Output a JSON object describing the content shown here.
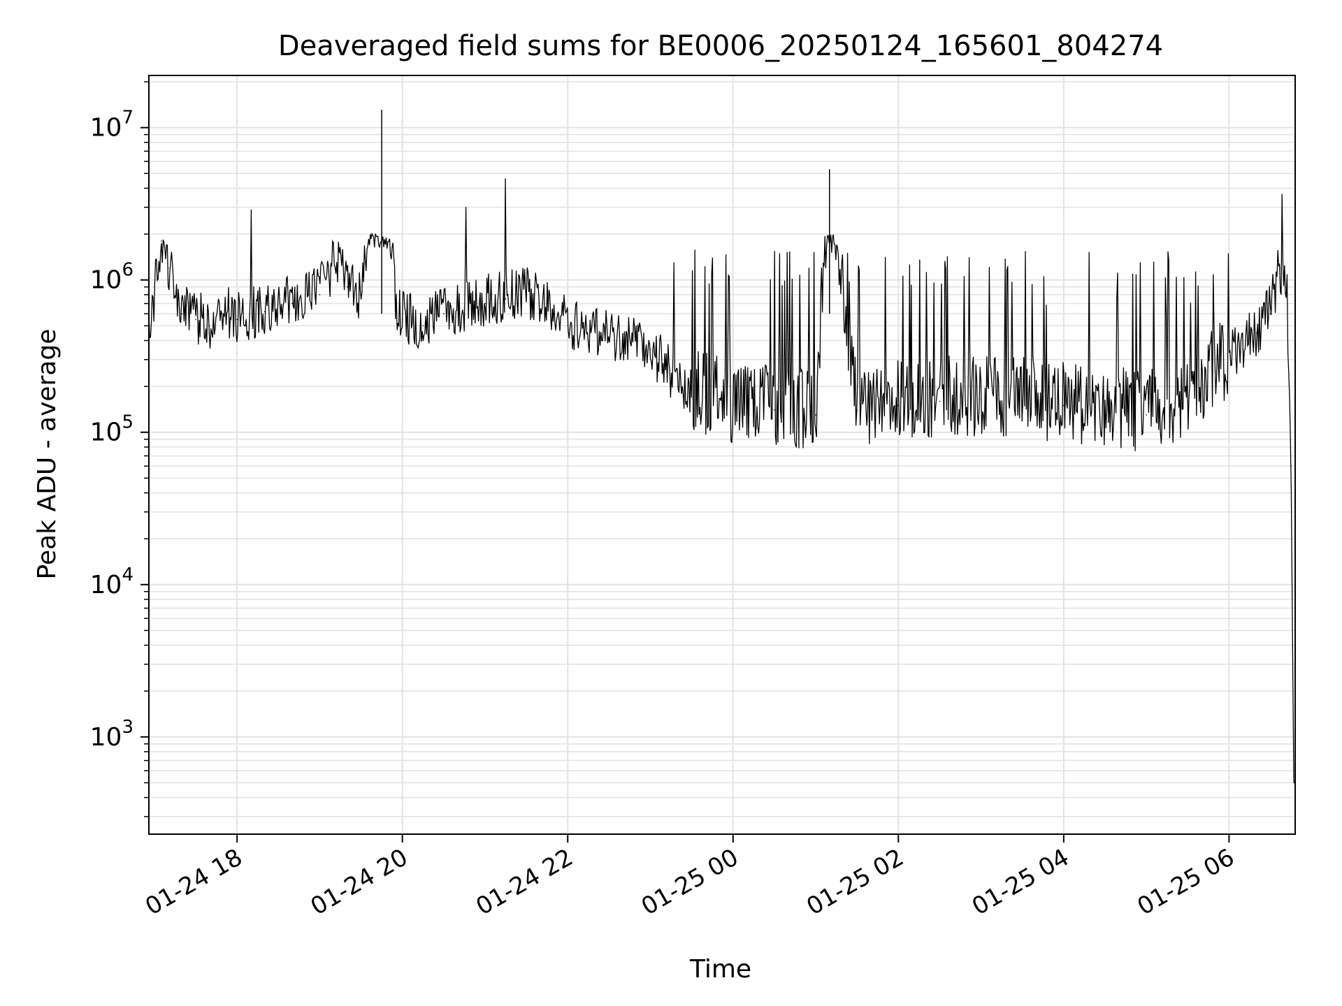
{
  "chart_data": {
    "type": "line",
    "title": "Deaveraged field sums for BE0006_20250124_165601_804274",
    "xlabel": "Time",
    "ylabel": "Peak ADU - average",
    "yscale": "log",
    "grid": true,
    "line_color": "#000000",
    "x_range": [
      "2025-01-24 16:56",
      "2025-01-25 06:48"
    ],
    "ylim": [
      230,
      22000000
    ],
    "x_ticks": [
      {
        "label": "01-24 18",
        "time": "2025-01-24 18:00"
      },
      {
        "label": "01-24 20",
        "time": "2025-01-24 20:00"
      },
      {
        "label": "01-24 22",
        "time": "2025-01-24 22:00"
      },
      {
        "label": "01-25 00",
        "time": "2025-01-25 00:00"
      },
      {
        "label": "01-25 02",
        "time": "2025-01-25 02:00"
      },
      {
        "label": "01-25 04",
        "time": "2025-01-25 04:00"
      },
      {
        "label": "01-25 06",
        "time": "2025-01-25 06:00"
      }
    ],
    "y_ticks": [
      {
        "base": "10",
        "exp": "3",
        "value": 1000
      },
      {
        "base": "10",
        "exp": "4",
        "value": 10000
      },
      {
        "base": "10",
        "exp": "5",
        "value": 100000
      },
      {
        "base": "10",
        "exp": "6",
        "value": 1000000
      },
      {
        "base": "10",
        "exp": "7",
        "value": 10000000
      }
    ],
    "series": [
      {
        "x": [
          "2025-01-24 16:56",
          "2025-01-24 17:05",
          "2025-01-24 17:10",
          "2025-01-24 17:20",
          "2025-01-24 17:30",
          "2025-01-24 17:40",
          "2025-01-24 17:50",
          "2025-01-24 18:00",
          "2025-01-24 18:20",
          "2025-01-24 18:40",
          "2025-01-24 19:00",
          "2025-01-24 19:15",
          "2025-01-24 19:20",
          "2025-01-24 19:30",
          "2025-01-24 19:45",
          "2025-01-24 19:55",
          "2025-01-24 20:00",
          "2025-01-24 20:15",
          "2025-01-24 20:30",
          "2025-01-24 20:45",
          "2025-01-24 21:00",
          "2025-01-24 21:15",
          "2025-01-24 21:30",
          "2025-01-24 21:45",
          "2025-01-24 22:00",
          "2025-01-24 22:20",
          "2025-01-24 22:40",
          "2025-01-24 23:00",
          "2025-01-24 23:20",
          "2025-01-24 23:40",
          "2025-01-25 00:00",
          "2025-01-25 00:30",
          "2025-01-25 01:00",
          "2025-01-25 01:10",
          "2025-01-25 01:30",
          "2025-01-25 02:00",
          "2025-01-25 02:30",
          "2025-01-25 03:00",
          "2025-01-25 03:30",
          "2025-01-25 04:00",
          "2025-01-25 04:30",
          "2025-01-25 05:00",
          "2025-01-25 05:30",
          "2025-01-25 05:50",
          "2025-01-25 06:10",
          "2025-01-25 06:20",
          "2025-01-25 06:30",
          "2025-01-25 06:37",
          "2025-01-25 06:42",
          "2025-01-25 06:45",
          "2025-01-25 06:47"
        ],
        "y": [
          400000,
          1800000,
          1200000,
          600000,
          550000,
          500000,
          600000,
          550000,
          620000,
          700000,
          800000,
          1500000,
          900000,
          750000,
          13000000,
          700000,
          550000,
          500000,
          600000,
          650000,
          700000,
          750000,
          800000,
          700000,
          500000,
          450000,
          400000,
          350000,
          200000,
          170000,
          150000,
          140000,
          130000,
          5300000,
          140000,
          150000,
          160000,
          165000,
          160000,
          150000,
          140000,
          130000,
          160000,
          250000,
          350000,
          450000,
          600000,
          1200000,
          900000,
          60000,
          500
        ]
      }
    ]
  }
}
